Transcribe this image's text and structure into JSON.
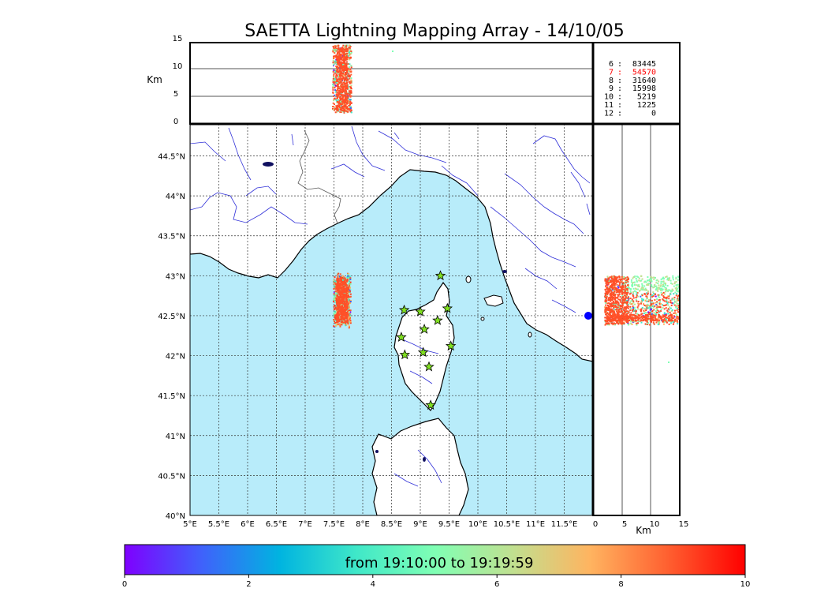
{
  "title": "SAETTA Lightning Mapping Array - 14/10/05",
  "top_panel": {
    "ylabel": "Km",
    "yticks": [
      "15",
      "10",
      "5",
      "0"
    ]
  },
  "right_panel": {
    "xlabel": "Km",
    "xticks": [
      "0",
      "5",
      "10",
      "15"
    ]
  },
  "stats": [
    {
      "level": "6",
      "count": "83445",
      "highlight": false
    },
    {
      "level": "7",
      "count": "54570",
      "highlight": true
    },
    {
      "level": "8",
      "count": "31640",
      "highlight": false
    },
    {
      "level": "9",
      "count": "15998",
      "highlight": false
    },
    {
      "level": "10",
      "count": "5219",
      "highlight": false
    },
    {
      "level": "11",
      "count": "1225",
      "highlight": false
    },
    {
      "level": "12",
      "count": "0",
      "highlight": false
    }
  ],
  "map": {
    "lon_ticks": [
      "5°E",
      "5.5°E",
      "6°E",
      "6.5°E",
      "7°E",
      "7.5°E",
      "8°E",
      "8.5°E",
      "9°E",
      "9.5°E",
      "10°E",
      "10.5°E",
      "11°E",
      "11.5°E"
    ],
    "lat_ticks": [
      "40°N",
      "40.5°N",
      "41°N",
      "41.5°N",
      "42°N",
      "42.5°N",
      "43°N",
      "43.5°N",
      "44°N",
      "44.5°N"
    ],
    "sea_color": "#b8ecfa",
    "land_color": "#ffffff",
    "river_color": "#3030d8",
    "station_color": "#80e020",
    "stations": [
      {
        "lon": 9.35,
        "lat": 43.0
      },
      {
        "lon": 8.72,
        "lat": 42.57
      },
      {
        "lon": 9.0,
        "lat": 42.55
      },
      {
        "lon": 9.47,
        "lat": 42.59
      },
      {
        "lon": 9.3,
        "lat": 42.44
      },
      {
        "lon": 9.07,
        "lat": 42.33
      },
      {
        "lon": 8.67,
        "lat": 42.23
      },
      {
        "lon": 9.53,
        "lat": 42.12
      },
      {
        "lon": 8.73,
        "lat": 42.01
      },
      {
        "lon": 9.05,
        "lat": 42.04
      },
      {
        "lon": 9.15,
        "lat": 41.86
      },
      {
        "lon": 9.18,
        "lat": 41.38
      }
    ],
    "lightning_center": {
      "lon": 7.63,
      "lat": 42.7
    }
  },
  "colorbar": {
    "label": "from 19:10:00 to 19:19:59",
    "ticks": [
      "0",
      "2",
      "4",
      "6",
      "8",
      "10"
    ],
    "colors": [
      "#7f00ff",
      "#3f62fb",
      "#00b4e0",
      "#40e8c8",
      "#80ffb4",
      "#c0e090",
      "#ffb460",
      "#ff6030",
      "#ff0000"
    ]
  }
}
